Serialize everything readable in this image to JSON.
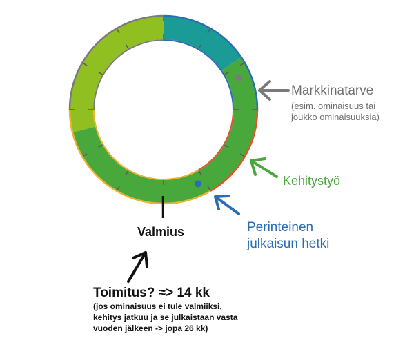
{
  "colors": {
    "teal": "#1a9b95",
    "green": "#48a83c",
    "yellow_green": "#90bf22",
    "grey": "#7a7a7a",
    "blue": "#2a6db3",
    "orange": "#e0532a",
    "yellow": "#efb12f",
    "black": "#111111"
  },
  "cycle": {
    "segments": [
      {
        "name": "teal-segment",
        "color": "teal",
        "start_deg": 0,
        "end_deg": 56
      },
      {
        "name": "green-segment",
        "color": "green",
        "start_deg": 56,
        "end_deg": 256
      },
      {
        "name": "yellow-green-segment",
        "color": "yellow_green",
        "start_deg": 256,
        "end_deg": 360
      }
    ],
    "outer_arcs": [
      {
        "color": "blue",
        "start_deg": 0,
        "end_deg": 90
      },
      {
        "color": "orange",
        "start_deg": 90,
        "end_deg": 150
      },
      {
        "color": "yellow",
        "start_deg": 150,
        "end_deg": 270
      },
      {
        "color": "grey",
        "start_deg": 270,
        "end_deg": 360
      }
    ],
    "inner_arcs": [
      {
        "color": "blue",
        "start_deg": 0,
        "end_deg": 90
      },
      {
        "color": "orange",
        "start_deg": 90,
        "end_deg": 150
      },
      {
        "color": "yellow",
        "start_deg": 150,
        "end_deg": 270
      },
      {
        "color": "grey",
        "start_deg": 270,
        "end_deg": 360
      }
    ],
    "tick_angles_deg": [
      0,
      30,
      60,
      90,
      120,
      150,
      180,
      210,
      240,
      270,
      300,
      330
    ],
    "markers": [
      {
        "name": "market-need-marker",
        "color": "grey",
        "angle_deg": 67
      },
      {
        "name": "release-moment-marker",
        "color": "blue",
        "angle_deg": 155
      }
    ]
  },
  "labels": {
    "market_need": "Markkinatarve",
    "market_need_sub": [
      "(esim. ominaisuus tai",
      "joukko ominaisuuksia)"
    ],
    "development": "Kehitystyö",
    "traditional_release": [
      "Perinteinen",
      "julkaisun hetki"
    ],
    "readiness": "Valmius",
    "delivery": "Toimitus?  ≈> 14 kk",
    "delivery_sub": [
      "(jos ominaisuus ei tule valmiiksi,",
      "kehitys jatkuu ja se julkaistaan vasta",
      "vuoden jälkeen -> jopa 26 kk)"
    ]
  }
}
